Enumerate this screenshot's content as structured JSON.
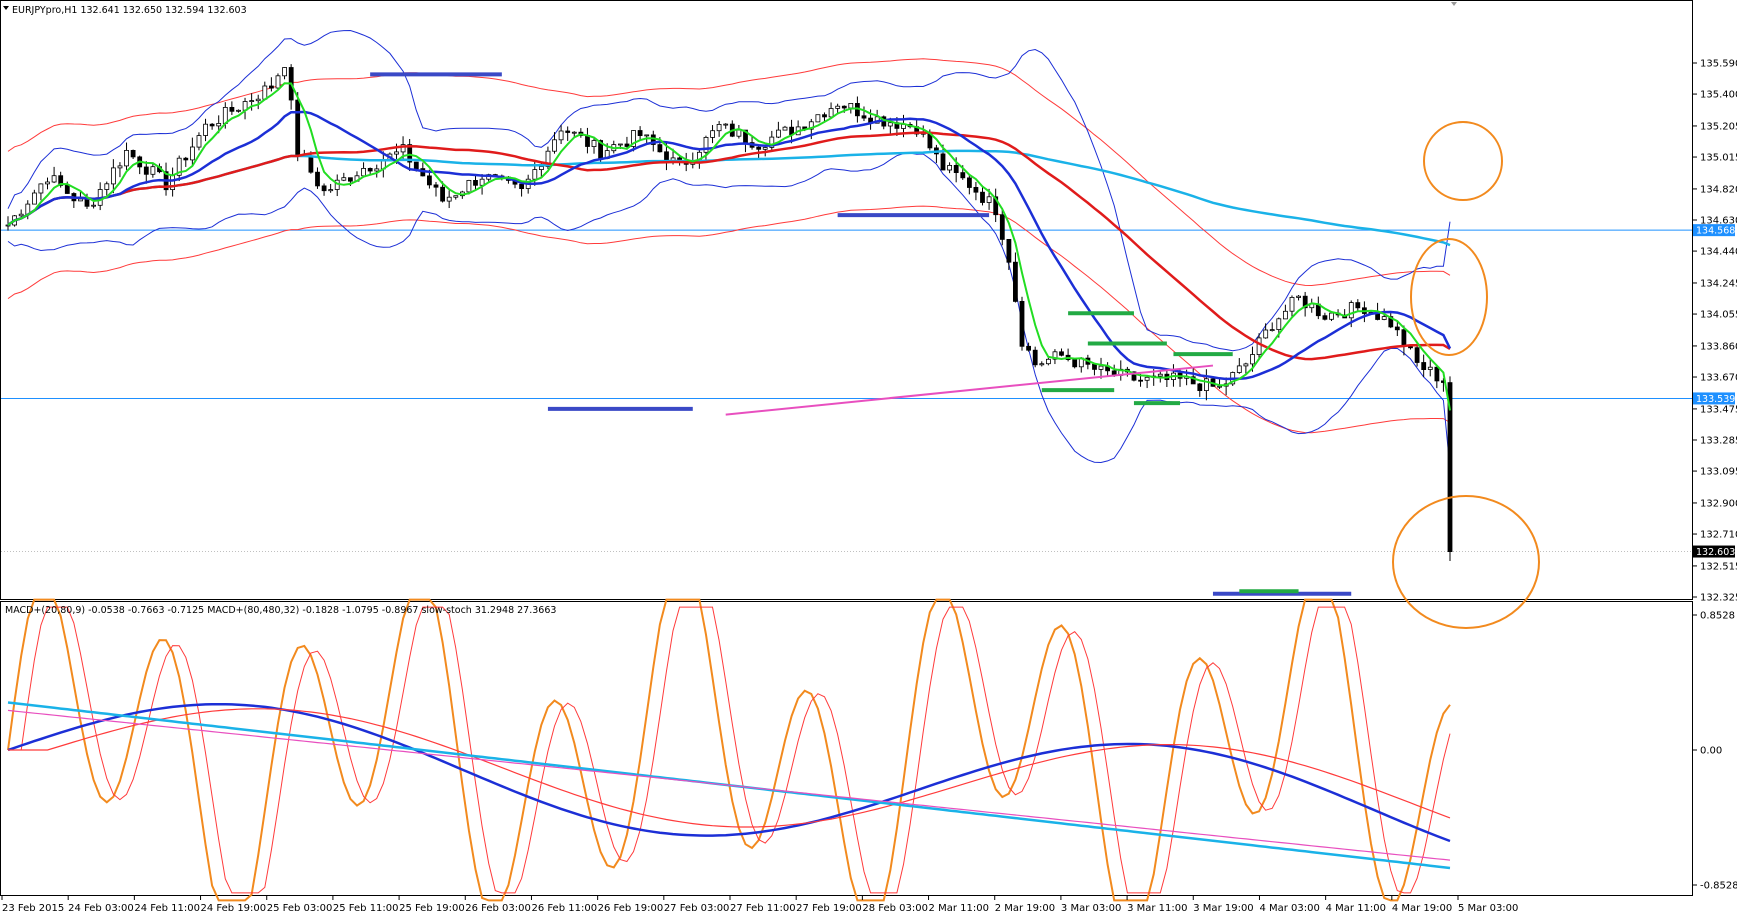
{
  "chart_data": [
    {
      "type": "candlestick",
      "header": "EURJPYpro,H1  132.641 132.650 132.594 132.603",
      "y_range": [
        132.325,
        135.755
      ],
      "y_ticks": [
        "135.590",
        "135.400",
        "135.205",
        "135.015",
        "134.820",
        "134.630",
        "134.440",
        "134.245",
        "134.055",
        "133.860",
        "133.670",
        "133.475",
        "133.285",
        "133.095",
        "132.900",
        "132.710",
        "132.515",
        "132.325"
      ],
      "price_tags": [
        {
          "value": 134.568,
          "label": "134.568",
          "color": "#1e90ff"
        },
        {
          "value": 133.539,
          "label": "133.539",
          "color": "#1e90ff"
        },
        {
          "value": 132.603,
          "label": "132.603",
          "color": "#000000"
        }
      ],
      "horizontal_lines": [
        {
          "value": 134.568,
          "color": "#1e90ff"
        },
        {
          "value": 133.539,
          "color": "#1e90ff"
        }
      ],
      "bar_count": 220,
      "close_path": [
        [
          0,
          134.6
        ],
        [
          6,
          134.9
        ],
        [
          12,
          134.7
        ],
        [
          18,
          135.05
        ],
        [
          24,
          134.85
        ],
        [
          30,
          135.2
        ],
        [
          36,
          135.35
        ],
        [
          40,
          135.45
        ],
        [
          42,
          135.6
        ],
        [
          44,
          135.05
        ],
        [
          48,
          134.8
        ],
        [
          54,
          134.95
        ],
        [
          60,
          135.05
        ],
        [
          66,
          134.75
        ],
        [
          72,
          134.9
        ],
        [
          78,
          134.8
        ],
        [
          84,
          135.2
        ],
        [
          90,
          135.05
        ],
        [
          96,
          135.15
        ],
        [
          102,
          134.95
        ],
        [
          108,
          135.2
        ],
        [
          114,
          135.1
        ],
        [
          120,
          135.2
        ],
        [
          126,
          135.35
        ],
        [
          132,
          135.25
        ],
        [
          138,
          135.2
        ],
        [
          142,
          134.95
        ],
        [
          146,
          134.85
        ],
        [
          150,
          134.7
        ],
        [
          152,
          134.4
        ],
        [
          154,
          133.9
        ],
        [
          156,
          133.75
        ],
        [
          160,
          133.8
        ],
        [
          166,
          133.7
        ],
        [
          172,
          133.65
        ],
        [
          178,
          133.65
        ],
        [
          184,
          133.6
        ],
        [
          188,
          133.75
        ],
        [
          192,
          134.0
        ],
        [
          196,
          134.15
        ],
        [
          200,
          134.05
        ],
        [
          206,
          134.1
        ],
        [
          210,
          134.0
        ],
        [
          214,
          133.75
        ],
        [
          218,
          133.65
        ]
      ],
      "close_path_note": "",
      "indicators": [
        "Bollinger Bands (blue)",
        "Envelopes (red)",
        "Moving averages (green, blue, red, cyan)"
      ],
      "annotations": [
        "horizontal support/resistance segments (blue, green)",
        "trendline (magenta)",
        "orange ellipses"
      ]
    },
    {
      "type": "line",
      "header": "MACD+(20,80,9) -0.0538 -0.7663 -0.7125  MACD+(80,480,32) -0.1828 -1.0795 -0.8967  slow-stoch 31.2948 27.3663",
      "y_ticks": [
        {
          "label": "0.8528",
          "value": 0.8528
        },
        {
          "label": "0.00",
          "value": 0.0
        },
        {
          "label": "-0.8528",
          "value": -0.8528
        }
      ],
      "series": [
        {
          "name": "",
          "color": "#f28a1e"
        },
        {
          "name": "",
          "color": "#ff3b3b"
        },
        {
          "name": "",
          "color": "#1c2fd6"
        },
        {
          "name": "",
          "color": "#e84fbf"
        },
        {
          "name": "",
          "color": "#1ab2e8"
        }
      ]
    }
  ],
  "x_axis": {
    "labels": [
      "23 Feb 2015",
      "24 Feb 03:00",
      "24 Feb 11:00",
      "24 Feb 19:00",
      "25 Feb 03:00",
      "25 Feb 11:00",
      "25 Feb 19:00",
      "26 Feb 03:00",
      "26 Feb 11:00",
      "26 Feb 19:00",
      "27 Feb 03:00",
      "27 Feb 11:00",
      "27 Feb 19:00",
      "28 Feb 03:00",
      "2 Mar 11:00",
      "2 Mar 19:00",
      "3 Mar 03:00",
      "3 Mar 11:00",
      "3 Mar 19:00",
      "4 Mar 03:00",
      "4 Mar 11:00",
      "4 Mar 19:00",
      "5 Mar 03:00"
    ]
  },
  "colors": {
    "background": "#ffffff",
    "bull": "#ffffff",
    "bear": "#000000",
    "bollinger": "#1c2fd6",
    "envelope": "#ff3b3b",
    "ma_fast": "#22dd22",
    "ma_mid": "#1c2fd6",
    "ma_slow": "#e01b1b",
    "ma_long": "#1ab2e8",
    "hline": "#1e90ff",
    "annotation_blue": "#3a49c6",
    "annotation_green": "#22aa44",
    "trendline": "#e84fbf",
    "ellipse": "#f28a1e"
  }
}
